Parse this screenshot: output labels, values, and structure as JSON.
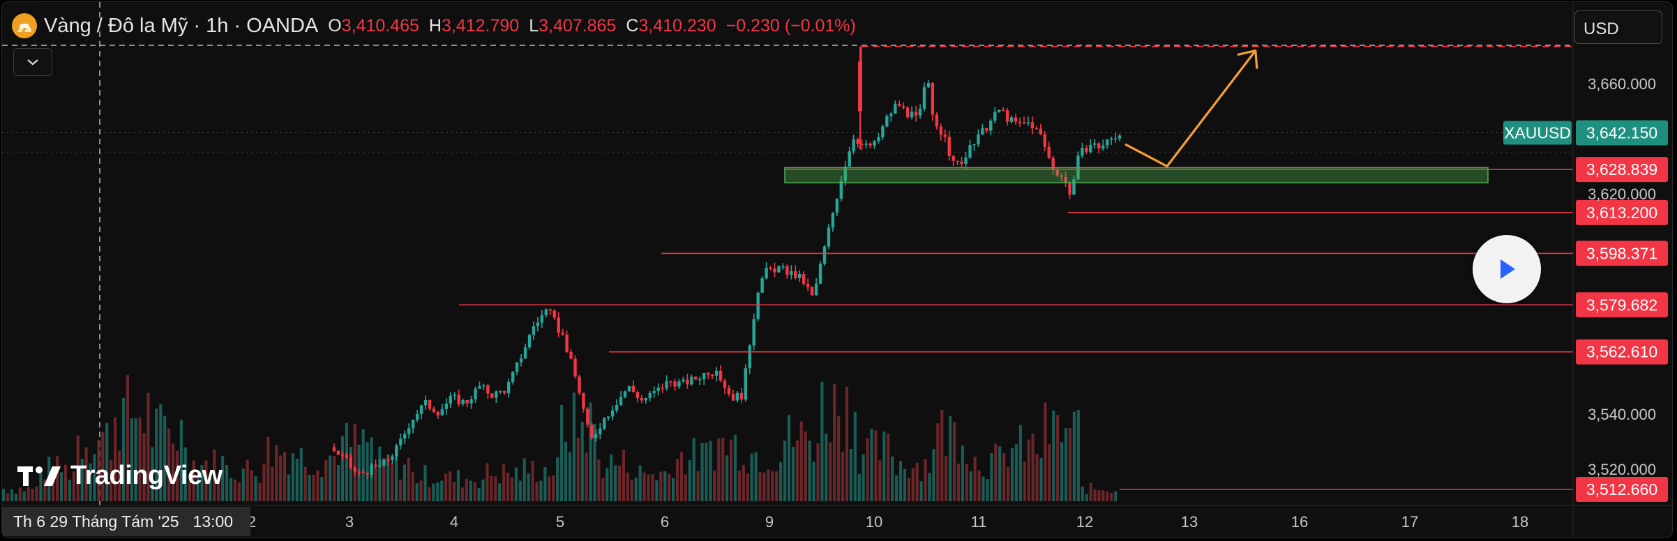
{
  "header": {
    "title": "Vàng / Đô la Mỹ · 1h · OANDA",
    "ohlc": [
      {
        "key": "O",
        "value": "3,410.465"
      },
      {
        "key": "H",
        "value": "3,412.790"
      },
      {
        "key": "L",
        "value": "3,407.865"
      },
      {
        "key": "C",
        "value": "3,410.230"
      }
    ],
    "change": "−0.230 (−0.01%)"
  },
  "currency_select": "USD",
  "brand": "TradingView",
  "crosshair_date": {
    "date": "Th 6 29 Tháng Tám '25",
    "time": "13:00"
  },
  "symbol_tag": "XAUUSD",
  "colors": {
    "up": "#26a69a",
    "down": "#f23645",
    "zone": "#4caf50",
    "arrow": "#f7a035",
    "bg": "#0f0f0f"
  },
  "chart_data": {
    "type": "candlestick",
    "symbol": "XAUUSD",
    "interval": "1h",
    "x_ticks": [
      "2",
      "3",
      "4",
      "5",
      "6",
      "9",
      "10",
      "11",
      "12",
      "13",
      "16",
      "17",
      "18"
    ],
    "y_ticks": [
      "3,520.000",
      "3,540.000",
      "3,620.000",
      "3,660.000"
    ],
    "ylim": [
      3505,
      3680
    ],
    "current_price": "3,642.150",
    "price_levels": [
      {
        "price": 3673.5,
        "label": "",
        "style": "dashed"
      },
      {
        "price": 3628.839,
        "label": "3,628.839"
      },
      {
        "price": 3613.2,
        "label": "3,613.200"
      },
      {
        "price": 3598.371,
        "label": "3,598.371"
      },
      {
        "price": 3579.682,
        "label": "3,579.682"
      },
      {
        "price": 3562.61,
        "label": "3,562.610"
      },
      {
        "price": 3512.66,
        "label": "3,512.660"
      }
    ],
    "zone": {
      "from": 3624,
      "to": 3629.5,
      "start_day": "9",
      "end_day": "17"
    },
    "projection": [
      {
        "day": "12.4",
        "price": 3638
      },
      {
        "day": "12.8",
        "price": 3630
      },
      {
        "day": "13.6",
        "price": 3672
      }
    ],
    "price_path": [
      [
        0,
        3528
      ],
      [
        0.5,
        3524
      ],
      [
        1.0,
        3518
      ],
      [
        2.0,
        3522
      ],
      [
        2.5,
        3528
      ],
      [
        3.0,
        3538
      ],
      [
        3.5,
        3544
      ],
      [
        4.0,
        3541
      ],
      [
        4.5,
        3546
      ],
      [
        5.0,
        3544
      ],
      [
        5.5,
        3550
      ],
      [
        6.0,
        3547
      ],
      [
        6.5,
        3549
      ],
      [
        7.0,
        3560
      ],
      [
        7.5,
        3572
      ],
      [
        8.0,
        3578
      ],
      [
        8.6,
        3568
      ],
      [
        9.2,
        3548
      ],
      [
        9.6,
        3530
      ],
      [
        10.0,
        3537
      ],
      [
        10.6,
        3545
      ],
      [
        11.0,
        3550
      ],
      [
        11.5,
        3545
      ],
      [
        12.0,
        3548
      ],
      [
        12.5,
        3552
      ],
      [
        13.0,
        3551
      ],
      [
        13.5,
        3553
      ],
      [
        14.0,
        3556
      ],
      [
        14.4,
        3553
      ],
      [
        14.8,
        3546
      ],
      [
        15.2,
        3547
      ],
      [
        15.5,
        3568
      ],
      [
        15.8,
        3587
      ],
      [
        16.1,
        3592
      ],
      [
        16.5,
        3593
      ],
      [
        17.0,
        3591
      ],
      [
        17.4,
        3589
      ],
      [
        17.8,
        3582
      ],
      [
        18.1,
        3595
      ],
      [
        18.5,
        3612
      ],
      [
        18.9,
        3628
      ],
      [
        19.3,
        3641
      ],
      [
        19.7,
        3637
      ],
      [
        20.1,
        3638
      ],
      [
        20.5,
        3647
      ],
      [
        20.9,
        3653
      ],
      [
        21.3,
        3649
      ],
      [
        21.7,
        3647
      ],
      [
        22.0,
        3663
      ],
      [
        22.2,
        3649
      ],
      [
        22.6,
        3641
      ],
      [
        23.0,
        3630
      ],
      [
        23.4,
        3633
      ],
      [
        23.7,
        3638
      ],
      [
        24.1,
        3643
      ],
      [
        24.4,
        3647
      ],
      [
        24.7,
        3651
      ],
      [
        25.0,
        3647
      ],
      [
        25.4,
        3645
      ],
      [
        25.8,
        3646
      ],
      [
        26.2,
        3641
      ],
      [
        26.6,
        3630
      ],
      [
        27.0,
        3626
      ],
      [
        27.3,
        3620
      ],
      [
        27.6,
        3634
      ],
      [
        28.0,
        3638
      ],
      [
        28.4,
        3637
      ],
      [
        28.8,
        3640
      ],
      [
        29.1,
        3642
      ]
    ],
    "volume_profile": [
      [
        0,
        10
      ],
      [
        1,
        25
      ],
      [
        2,
        50
      ],
      [
        3,
        70
      ],
      [
        4,
        55
      ],
      [
        5,
        30
      ],
      [
        6,
        25
      ],
      [
        7,
        40
      ],
      [
        8,
        35
      ],
      [
        9,
        45
      ],
      [
        10,
        30
      ],
      [
        11,
        20
      ],
      [
        12,
        18
      ],
      [
        13,
        22
      ],
      [
        14,
        25
      ],
      [
        15,
        60
      ],
      [
        16,
        30
      ],
      [
        17,
        22
      ],
      [
        18,
        35
      ],
      [
        19,
        45
      ],
      [
        20,
        38
      ],
      [
        21,
        50
      ],
      [
        22,
        75
      ],
      [
        23,
        40
      ],
      [
        24,
        30
      ],
      [
        25,
        55
      ],
      [
        26,
        32
      ],
      [
        27,
        42
      ],
      [
        28,
        55
      ],
      [
        29,
        10
      ]
    ]
  }
}
